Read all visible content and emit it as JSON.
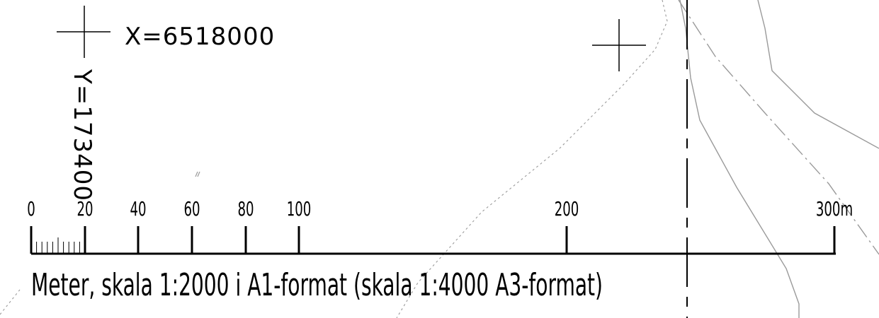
{
  "map": {
    "coord_x_label": "X=6518000",
    "coord_y_label": "Y=173400",
    "scale_bar": {
      "unit": "m",
      "ticks": [
        "0",
        "20",
        "40",
        "60",
        "80",
        "100",
        "200",
        "300m"
      ],
      "caption": "Meter, skala 1:2000 i A1-format (skala 1:4000 A3-format)"
    },
    "colors": {
      "ink": "#000000",
      "feature_line": "#9a9a9a"
    },
    "features": {
      "grid_crosses": 2,
      "property_boundary": "dashed-black-vertical",
      "road_edges": "grey-solid-and-dashdot"
    }
  }
}
